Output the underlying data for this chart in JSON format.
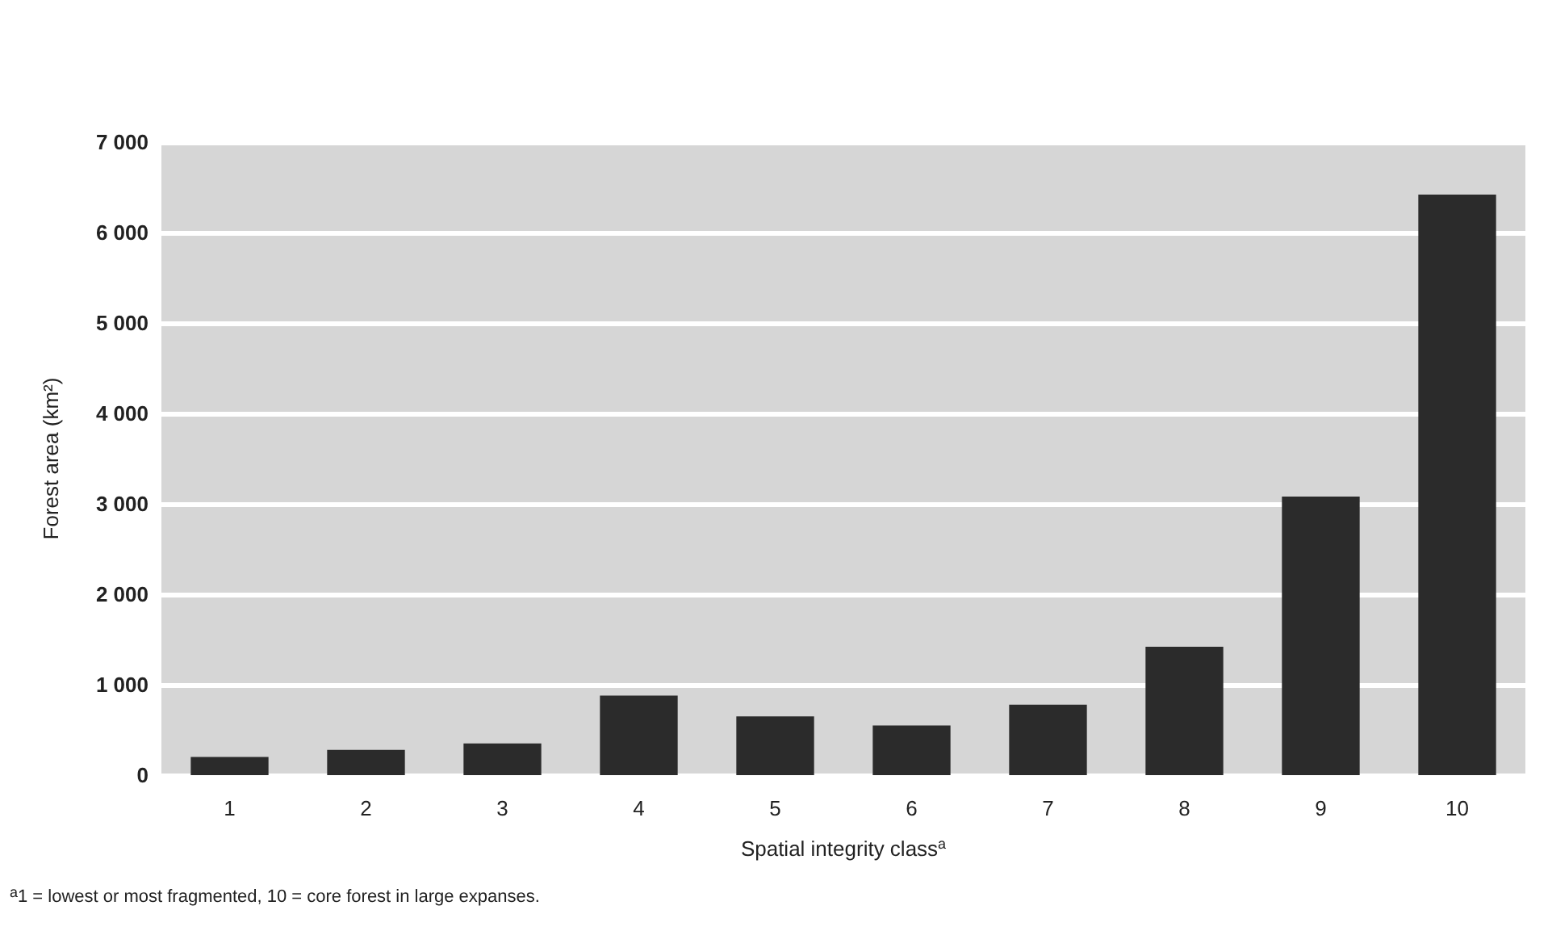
{
  "chart_data": {
    "type": "bar",
    "xlabel": "Spatial integrity class$^{a}$",
    "ylabel": "Forest area (km²)",
    "categories": [
      "1",
      "2",
      "3",
      "4",
      "5",
      "6",
      "7",
      "8",
      "9",
      "10"
    ],
    "values": [
      200,
      280,
      350,
      880,
      650,
      550,
      780,
      1420,
      3080,
      6420
    ],
    "color": "#2b2b2b",
    "ylim": [
      0,
      7000
    ],
    "yticks": [
      0,
      {
        "value": 1000,
        "label": "1 000"
      },
      {
        "value": 2000,
        "label": "2 000"
      },
      {
        "value": 3000,
        "label": "3 000"
      },
      {
        "value": 4000,
        "label": "4 000"
      },
      {
        "value": 5000,
        "label": "5 000"
      },
      {
        "value": 6000,
        "label": "6 000"
      },
      {
        "value": 7000,
        "label": "7 000"
      }
    ],
    "grid": "y",
    "annotations": [
      "$^{a}$1 = lowest or most fragmented, 10 = core forest in large expanses."
    ]
  }
}
